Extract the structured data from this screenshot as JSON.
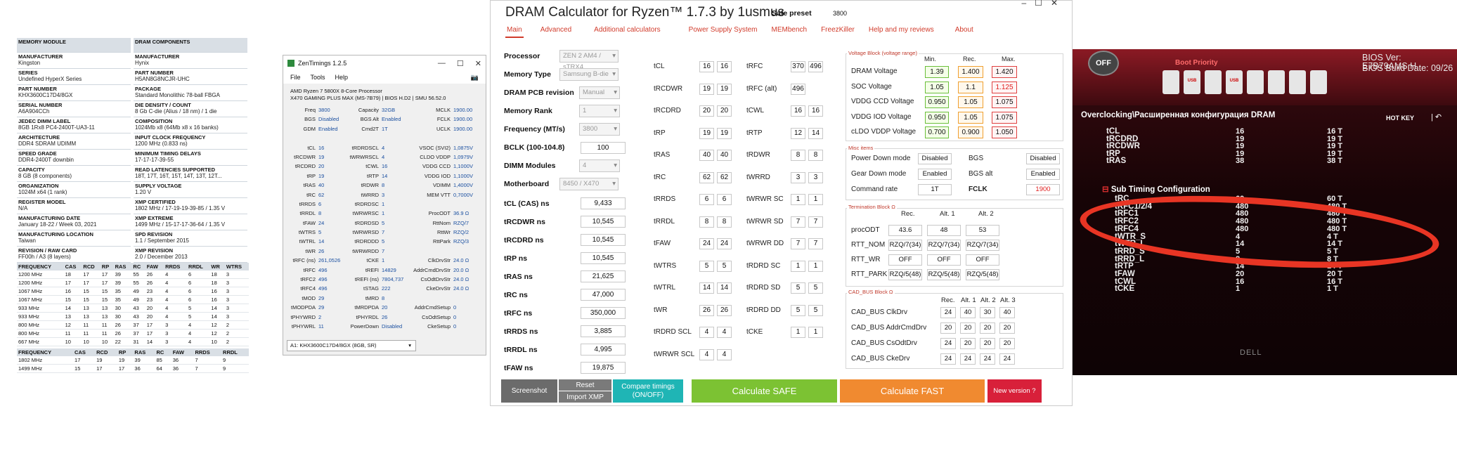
{
  "specs": {
    "left": [
      {
        "label": "MEMORY MODULE",
        "value": ""
      },
      {
        "label": "MANUFACTURER",
        "value": "Kingston"
      },
      {
        "label": "SERIES",
        "value": "Undefined HyperX Series"
      },
      {
        "label": "PART NUMBER",
        "value": "KHX3600C17D4/8GX"
      },
      {
        "label": "SERIAL NUMBER",
        "value": "A6A904CCh"
      },
      {
        "label": "JEDEC DIMM LABEL",
        "value": "8GB 1Rx8 PC4-2400T-UA3-11"
      },
      {
        "label": "ARCHITECTURE",
        "value": "DDR4 SDRAM UDIMM"
      },
      {
        "label": "SPEED GRADE",
        "value": "DDR4-2400T downbin"
      },
      {
        "label": "CAPACITY",
        "value": "8 GB (8 components)"
      },
      {
        "label": "ORGANIZATION",
        "value": "1024M x64 (1 rank)"
      },
      {
        "label": "REGISTER MODEL",
        "value": "N/A"
      },
      {
        "label": "MANUFACTURING DATE",
        "value": "January 18-22 / Week 03, 2021"
      },
      {
        "label": "MANUFACTURING LOCATION",
        "value": "Taiwan"
      },
      {
        "label": "REVISION / RAW CARD",
        "value": "FF00h / A3 (8 layers)"
      }
    ],
    "right": [
      {
        "label": "DRAM COMPONENTS",
        "value": ""
      },
      {
        "label": "MANUFACTURER",
        "value": "Hynix"
      },
      {
        "label": "PART NUMBER",
        "value": "H5AN8G8NCJR-UHC"
      },
      {
        "label": "PACKAGE",
        "value": "Standard Monolithic 78-ball FBGA"
      },
      {
        "label": "DIE DENSITY / COUNT",
        "value": "8 Gb C-die (Alius / 18 nm) / 1 die"
      },
      {
        "label": "COMPOSITION",
        "value": "1024Mb x8 (64Mb x8 x 16 banks)"
      },
      {
        "label": "INPUT CLOCK FREQUENCY",
        "value": "1200 MHz (0.833 ns)"
      },
      {
        "label": "MINIMUM TIMING DELAYS",
        "value": "17-17-17-39-55"
      },
      {
        "label": "READ LATENCIES SUPPORTED",
        "value": "18T, 17T, 16T, 15T, 14T, 13T, 12T..."
      },
      {
        "label": "SUPPLY VOLTAGE",
        "value": "1.20 V"
      },
      {
        "label": "XMP CERTIFIED",
        "value": "1802 MHz / 17-19-19-39-85 / 1.35 V"
      },
      {
        "label": "XMP EXTREME",
        "value": "1499 MHz / 15-17-17-36-64 / 1.35 V"
      },
      {
        "label": "SPD REVISION",
        "value": "1.1 / September 2015"
      },
      {
        "label": "XMP REVISION",
        "value": "2.0 / December 2013"
      }
    ],
    "freq_headers": [
      "FREQUENCY",
      "CAS",
      "RCD",
      "RP",
      "RAS",
      "RC",
      "FAW",
      "RRDS",
      "RRDL",
      "WR",
      "WTRS"
    ],
    "freq_rows": [
      [
        "1200 MHz",
        "18",
        "17",
        "17",
        "39",
        "55",
        "26",
        "4",
        "6",
        "18",
        "3"
      ],
      [
        "1200 MHz",
        "17",
        "17",
        "17",
        "39",
        "55",
        "26",
        "4",
        "6",
        "18",
        "3"
      ],
      [
        "1067 MHz",
        "16",
        "15",
        "15",
        "35",
        "49",
        "23",
        "4",
        "6",
        "16",
        "3"
      ],
      [
        "1067 MHz",
        "15",
        "15",
        "15",
        "35",
        "49",
        "23",
        "4",
        "6",
        "16",
        "3"
      ],
      [
        "933 MHz",
        "14",
        "13",
        "13",
        "30",
        "43",
        "20",
        "4",
        "5",
        "14",
        "3"
      ],
      [
        "933 MHz",
        "13",
        "13",
        "13",
        "30",
        "43",
        "20",
        "4",
        "5",
        "14",
        "3"
      ],
      [
        "800 MHz",
        "12",
        "11",
        "11",
        "26",
        "37",
        "17",
        "3",
        "4",
        "12",
        "2"
      ],
      [
        "800 MHz",
        "11",
        "11",
        "11",
        "26",
        "37",
        "17",
        "3",
        "4",
        "12",
        "2"
      ],
      [
        "667 MHz",
        "10",
        "10",
        "10",
        "22",
        "31",
        "14",
        "3",
        "4",
        "10",
        "2"
      ]
    ],
    "xmp_headers": [
      "FREQUENCY",
      "CAS",
      "RCD",
      "RP",
      "RAS",
      "RC",
      "FAW",
      "RRDS",
      "RRDL"
    ],
    "xmp_rows": [
      [
        "1802 MHz",
        "17",
        "19",
        "19",
        "39",
        "85",
        "36",
        "7",
        "9"
      ],
      [
        "1499 MHz",
        "15",
        "17",
        "17",
        "36",
        "64",
        "36",
        "7",
        "9"
      ]
    ]
  },
  "zen": {
    "title": "ZenTimings 1.2.5",
    "menu": [
      "File",
      "Tools",
      "Help"
    ],
    "cpu_line1": "AMD Ryzen 7 5800X 8-Core Processor",
    "cpu_line2": "X470 GAMING PLUS MAX (MS-7B79) | BIOS H.D2 | SMU 56.52.0",
    "rows": [
      [
        "Freq",
        "3800",
        "Capacity",
        "32GB",
        "MCLK",
        "1900.00"
      ],
      [
        "BGS",
        "Disabled",
        "BGS Alt",
        "Enabled",
        "FCLK",
        "1900.00"
      ],
      [
        "GDM",
        "Enabled",
        "Cmd2T",
        "1T",
        "UCLK",
        "1900.00"
      ],
      [
        "",
        "",
        "",
        "",
        "",
        ""
      ],
      [
        "tCL",
        "16",
        "tRDRDSCL",
        "4",
        "VSOC (SVI2)",
        "1,0875V"
      ],
      [
        "tRCDWR",
        "19",
        "tWRWRSCL",
        "4",
        "CLDO VDDP",
        "1,0979V"
      ],
      [
        "tRCDRD",
        "20",
        "tCWL",
        "16",
        "VDDG CCD",
        "1,1000V"
      ],
      [
        "tRP",
        "19",
        "tRTP",
        "14",
        "VDDG IOD",
        "1,1000V"
      ],
      [
        "tRAS",
        "40",
        "tRDWR",
        "8",
        "VDIMM",
        "1,4000V"
      ],
      [
        "tRC",
        "62",
        "tWRRD",
        "3",
        "MEM VTT",
        "0,7000V"
      ],
      [
        "tRRDS",
        "6",
        "tRDRDSC",
        "1",
        "",
        ""
      ],
      [
        "tRRDL",
        "8",
        "tWRWRSC",
        "1",
        "ProcODT",
        "36.9 Ω"
      ],
      [
        "tFAW",
        "24",
        "tRDRDSD",
        "5",
        "RttNom",
        "RZQ/7"
      ],
      [
        "tWTRS",
        "5",
        "tWRWRSD",
        "7",
        "RttWr",
        "RZQ/2"
      ],
      [
        "tWTRL",
        "14",
        "tRDRDDD",
        "5",
        "RttPark",
        "RZQ/3"
      ],
      [
        "tWR",
        "26",
        "tWRWRDD",
        "7",
        "",
        ""
      ],
      [
        "tRFC (ns)",
        "261,0526",
        "tCKE",
        "1",
        "ClkDrvStr",
        "24.0 Ω"
      ],
      [
        "tRFC",
        "496",
        "tREFI",
        "14829",
        "AddrCmdDrvStr",
        "20.0 Ω"
      ],
      [
        "tRFC2",
        "496",
        "tREFI (ns)",
        "7804,737",
        "CsOdtDrvStr",
        "24.0 Ω"
      ],
      [
        "tRFC4",
        "496",
        "tSTAG",
        "222",
        "CkeDrvStr",
        "24.0 Ω"
      ],
      [
        "tMOD",
        "29",
        "tMRD",
        "8",
        "",
        ""
      ],
      [
        "tMODPDA",
        "29",
        "tMRDPDA",
        "20",
        "AddrCmdSetup",
        "0"
      ],
      [
        "tPHYWRD",
        "2",
        "tPHYRDL",
        "26",
        "CsOdtSetup",
        "0"
      ],
      [
        "tPHYWRL",
        "11",
        "PowerDown",
        "Disabled",
        "CkeSetup",
        "0"
      ]
    ],
    "module_select": "A1: KHX3600C17D4/8GX (8GB, SR)"
  },
  "dram": {
    "title": "DRAM Calculator for Ryzen™ 1.7.3 by 1usmus",
    "safe_label": "Safe preset",
    "safe_value": "3800",
    "tabs": [
      "Main",
      "Advanced",
      "Additional calculators",
      "Power Supply System",
      "MEMbench",
      "FreezKiller",
      "Help and my reviews",
      "About"
    ],
    "left_fields": [
      {
        "label": "Processor",
        "value": "ZEN 2 AM4 / sTRX4"
      },
      {
        "label": "Memory Type",
        "value": "Samsung B-die"
      },
      {
        "label": "DRAM PCB revision",
        "value": "Manual"
      },
      {
        "label": "Memory Rank",
        "value": "1"
      },
      {
        "label": "Frequency (MT/s)",
        "value": "3800"
      },
      {
        "label": "BCLK (100-104.8)",
        "value": "100"
      },
      {
        "label": "DIMM Modules",
        "value": "4"
      },
      {
        "label": "Motherboard",
        "value": "8450 / X470"
      }
    ],
    "ns_fields": [
      {
        "label": "tCL (CAS) ns",
        "value": "9,433"
      },
      {
        "label": "tRCDWR ns",
        "value": "10,545"
      },
      {
        "label": "tRCDRD ns",
        "value": "10,545"
      },
      {
        "label": "tRP ns",
        "value": "10,545"
      },
      {
        "label": "tRAS ns",
        "value": "21,625"
      },
      {
        "label": "tRC ns",
        "value": "47,000"
      },
      {
        "label": "tRFC ns",
        "value": "350,000"
      },
      {
        "label": "tRRDS ns",
        "value": "3,885"
      },
      {
        "label": "tRRDL ns",
        "value": "4,995"
      },
      {
        "label": "tFAW ns",
        "value": "19,875"
      }
    ],
    "timings_a": [
      {
        "label": "tCL",
        "v1": "16",
        "v2": "16"
      },
      {
        "label": "tRCDWR",
        "v1": "19",
        "v2": "19"
      },
      {
        "label": "tRCDRD",
        "v1": "20",
        "v2": "20"
      },
      {
        "label": "tRP",
        "v1": "19",
        "v2": "19"
      },
      {
        "label": "tRAS",
        "v1": "40",
        "v2": "40"
      },
      {
        "label": "tRC",
        "v1": "62",
        "v2": "62"
      },
      {
        "label": "tRRDS",
        "v1": "6",
        "v2": "6"
      },
      {
        "label": "tRRDL",
        "v1": "8",
        "v2": "8"
      },
      {
        "label": "tFAW",
        "v1": "24",
        "v2": "24"
      },
      {
        "label": "tWTRS",
        "v1": "5",
        "v2": "5"
      },
      {
        "label": "tWTRL",
        "v1": "14",
        "v2": "14"
      },
      {
        "label": "tWR",
        "v1": "26",
        "v2": "26"
      },
      {
        "label": "tRDRD SCL",
        "v1": "4",
        "v2": "4"
      },
      {
        "label": "tWRWR SCL",
        "v1": "4",
        "v2": "4"
      }
    ],
    "timings_b": [
      {
        "label": "tRFC",
        "v1": "370",
        "v2": "496"
      },
      {
        "label": "tRFC (alt)",
        "v1": "496",
        "v2": ""
      },
      {
        "label": "tCWL",
        "v1": "16",
        "v2": "16"
      },
      {
        "label": "tRTP",
        "v1": "12",
        "v2": "14"
      },
      {
        "label": "tRDWR",
        "v1": "8",
        "v2": "8"
      },
      {
        "label": "tWRRD",
        "v1": "3",
        "v2": "3"
      },
      {
        "label": "tWRWR SC",
        "v1": "1",
        "v2": "1"
      },
      {
        "label": "tWRWR SD",
        "v1": "7",
        "v2": "7"
      },
      {
        "label": "tWRWR DD",
        "v1": "7",
        "v2": "7"
      },
      {
        "label": "tRDRD SC",
        "v1": "1",
        "v2": "1"
      },
      {
        "label": "tRDRD SD",
        "v1": "5",
        "v2": "5"
      },
      {
        "label": "tRDRD DD",
        "v1": "5",
        "v2": "5"
      },
      {
        "label": "tCKE",
        "v1": "1",
        "v2": "1"
      }
    ],
    "voltage": {
      "title": "Voltage Block (voltage range)",
      "headers": [
        "Min.",
        "Rec.",
        "Max."
      ],
      "rows": [
        {
          "label": "DRAM Voltage",
          "min": "1.39",
          "rec": "1.400",
          "max": "1.420"
        },
        {
          "label": "SOC Voltage",
          "min": "1.05",
          "rec": "1.1",
          "max": "1.125"
        },
        {
          "label": "VDDG  CCD Voltage",
          "min": "0.950",
          "rec": "1.05",
          "max": "1.075"
        },
        {
          "label": "VDDG  IOD Voltage",
          "min": "0.950",
          "rec": "1.05",
          "max": "1.075"
        },
        {
          "label": "cLDO VDDP Voltage",
          "min": "0.700",
          "rec": "0.900",
          "max": "1.050"
        }
      ]
    },
    "misc": {
      "title": "Misc items",
      "rows": [
        {
          "l1": "Power Down mode",
          "v1": "Disabled",
          "l2": "BGS",
          "v2": "Disabled"
        },
        {
          "l1": "Gear Down mode",
          "v1": "Enabled",
          "l2": "BGS alt",
          "v2": "Enabled"
        },
        {
          "l1": "Command rate",
          "v1": "1T",
          "l2": "FCLK",
          "v2": "1900"
        }
      ]
    },
    "term": {
      "title": "Termination Block Ω",
      "headers": [
        "Rec.",
        "Alt. 1",
        "Alt. 2"
      ],
      "rows": [
        {
          "label": "procODT",
          "vals": [
            "43.6",
            "48",
            "53"
          ]
        },
        {
          "label": "RTT_NOM",
          "vals": [
            "RZQ/7(34)",
            "RZQ/7(34)",
            "RZQ/7(34)"
          ]
        },
        {
          "label": "RTT_WR",
          "vals": [
            "OFF",
            "OFF",
            "OFF"
          ]
        },
        {
          "label": "RTT_PARK",
          "vals": [
            "RZQ/5(48)",
            "RZQ/5(48)",
            "RZQ/5(48)"
          ]
        }
      ]
    },
    "cad": {
      "title": "CAD_BUS Block Ω",
      "headers": [
        "Rec.",
        "Alt. 1",
        "Alt. 2",
        "Alt. 3"
      ],
      "rows": [
        {
          "label": "CAD_BUS ClkDrv",
          "vals": [
            "24",
            "40",
            "30",
            "40"
          ]
        },
        {
          "label": "CAD_BUS AddrCmdDrv",
          "vals": [
            "20",
            "20",
            "20",
            "20"
          ]
        },
        {
          "label": "CAD_BUS CsOdtDrv",
          "vals": [
            "24",
            "20",
            "20",
            "20"
          ]
        },
        {
          "label": "CAD_BUS CkeDrv",
          "vals": [
            "24",
            "24",
            "24",
            "24"
          ]
        }
      ]
    },
    "buttons": {
      "screenshot": "Screenshot",
      "reset": "Reset",
      "import_xmp": "Import XMP",
      "compare": "Compare timings (ON/OFF)",
      "calc_safe": "Calculate SAFE",
      "calc_fast": "Calculate FAST",
      "new_version": "New version ?"
    }
  },
  "bios": {
    "off_label": "OFF",
    "boot_priority": "Boot Priority",
    "bios_ver": "BIOS Ver: E7B79AMS.H",
    "bios_date": "BIOS Build Date: 09/26",
    "breadcrumb": "Overclocking\\Расширенная конфигурация DRAM",
    "hotkey": "HOT KEY",
    "sub_header": "Sub Timing Configuration",
    "rows_top": [
      {
        "name": "tCL",
        "v": "16",
        "t": "16 T"
      },
      {
        "name": "tRCDRD",
        "v": "19",
        "t": "19 T"
      },
      {
        "name": "tRCDWR",
        "v": "19",
        "t": "19 T"
      },
      {
        "name": "tRP",
        "v": "19",
        "t": "19 T"
      },
      {
        "name": "tRAS",
        "v": "38",
        "t": "38 T"
      }
    ],
    "rows_sub": [
      {
        "name": "tRC",
        "v": "60",
        "t": "60 T"
      },
      {
        "name": "tRFC1/2/4",
        "v": "480",
        "t": "480 T"
      },
      {
        "name": "tRFC1",
        "v": "480",
        "t": "480 T"
      },
      {
        "name": "tRFC2",
        "v": "480",
        "t": "480 T"
      },
      {
        "name": "tRFC4",
        "v": "480",
        "t": "480 T"
      },
      {
        "name": "tWTR_S",
        "v": "4",
        "t": "4 T"
      },
      {
        "name": "tWTR_L",
        "v": "14",
        "t": "14 T"
      },
      {
        "name": "tRRD_S",
        "v": "5",
        "t": "5 T"
      },
      {
        "name": "tRRD_L",
        "v": "8",
        "t": "8 T"
      },
      {
        "name": "tRTP",
        "v": "14",
        "t": "14 T"
      },
      {
        "name": "tFAW",
        "v": "20",
        "t": "20 T"
      },
      {
        "name": "tCWL",
        "v": "16",
        "t": "16 T"
      },
      {
        "name": "tCKE",
        "v": "1",
        "t": "1 T"
      }
    ],
    "boot_icons": [
      "USB",
      "USB",
      "USB",
      "USB",
      "USB"
    ],
    "watermark": "DELL"
  }
}
